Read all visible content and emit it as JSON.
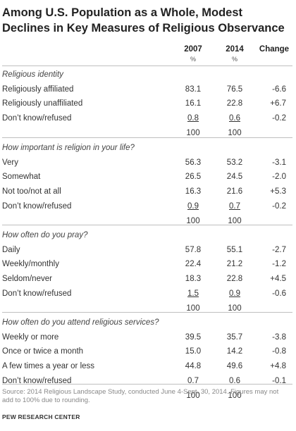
{
  "title": "Among U.S. Population as a Whole, Modest Declines in Key Measures of Religious Observance",
  "columns": {
    "y1": "2007",
    "y2": "2014",
    "change": "Change",
    "pct1": "%",
    "pct2": "%"
  },
  "sections": [
    {
      "question": "Religious identity",
      "rows": [
        {
          "label": "Religiously affiliated",
          "y2007": "83.1",
          "y2014": "76.5",
          "change": "-6.6"
        },
        {
          "label": "Religiously unaffiliated",
          "y2007": "16.1",
          "y2014": "22.8",
          "change": "+6.7"
        },
        {
          "label": "Don’t know/refused",
          "y2007": "0.8",
          "y2014": "0.6",
          "change": "-0.2"
        }
      ],
      "total": {
        "y2007": "100",
        "y2014": "100"
      }
    },
    {
      "question": "How important is religion in your life?",
      "rows": [
        {
          "label": "Very",
          "y2007": "56.3",
          "y2014": "53.2",
          "change": "-3.1"
        },
        {
          "label": "Somewhat",
          "y2007": "26.5",
          "y2014": "24.5",
          "change": "-2.0"
        },
        {
          "label": "Not too/not at all",
          "y2007": "16.3",
          "y2014": "21.6",
          "change": "+5.3"
        },
        {
          "label": "Don’t know/refused",
          "y2007": "0.9",
          "y2014": "0.7",
          "change": "-0.2"
        }
      ],
      "total": {
        "y2007": "100",
        "y2014": "100"
      }
    },
    {
      "question": "How often do you pray?",
      "rows": [
        {
          "label": "Daily",
          "y2007": "57.8",
          "y2014": "55.1",
          "change": "-2.7"
        },
        {
          "label": "Weekly/monthly",
          "y2007": "22.4",
          "y2014": "21.2",
          "change": "-1.2"
        },
        {
          "label": "Seldom/never",
          "y2007": "18.3",
          "y2014": "22.8",
          "change": "+4.5"
        },
        {
          "label": "Don’t know/refused",
          "y2007": "1.5",
          "y2014": "0.9",
          "change": "-0.6"
        }
      ],
      "total": {
        "y2007": "100",
        "y2014": "100"
      }
    },
    {
      "question": "How often do you attend religious services?",
      "rows": [
        {
          "label": "Weekly or more",
          "y2007": "39.5",
          "y2014": "35.7",
          "change": "-3.8"
        },
        {
          "label": "Once or twice a month",
          "y2007": "15.0",
          "y2014": "14.2",
          "change": "-0.8"
        },
        {
          "label": "A few times a year or less",
          "y2007": "44.8",
          "y2014": "49.6",
          "change": "+4.8"
        },
        {
          "label": "Don’t know/refused",
          "y2007": "0.7",
          "y2014": "0.6",
          "change": "-0.1"
        }
      ],
      "total": {
        "y2007": "100",
        "y2014": "100"
      }
    }
  ],
  "source": "Source: 2014 Religious Landscape Study, conducted June 4-Sept. 30, 2014. Figures may not add to 100% due to rounding.",
  "org": "PEW RESEARCH CENTER"
}
